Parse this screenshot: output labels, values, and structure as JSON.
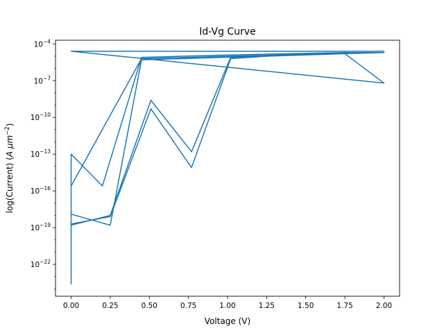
{
  "chart_data": {
    "type": "line",
    "title": "Id-Vg Curve",
    "xlabel": "Voltage (V)",
    "ylabel_parts": {
      "prefix": "log(Current) (",
      "unit_a": "A",
      "unit_mu": "μm",
      "exponent": "−2",
      "suffix": ")"
    },
    "xlim": [
      -0.1,
      2.1
    ],
    "ylim_log10": [
      -24.6,
      -3.7
    ],
    "log_scale_y": true,
    "grid": false,
    "line_color": "#1f77b4",
    "x_ticks": [
      {
        "value": 0.0,
        "label": "0.00"
      },
      {
        "value": 0.25,
        "label": "0.25"
      },
      {
        "value": 0.5,
        "label": "0.50"
      },
      {
        "value": 0.75,
        "label": "0.75"
      },
      {
        "value": 1.0,
        "label": "1.00"
      },
      {
        "value": 1.25,
        "label": "1.25"
      },
      {
        "value": 1.5,
        "label": "1.50"
      },
      {
        "value": 1.75,
        "label": "1.75"
      },
      {
        "value": 2.0,
        "label": "2.00"
      }
    ],
    "y_ticks": [
      {
        "exp": -4,
        "label_base": "10",
        "label_exp": "−4"
      },
      {
        "exp": -7,
        "label_base": "10",
        "label_exp": "−7"
      },
      {
        "exp": -10,
        "label_base": "10",
        "label_exp": "−10"
      },
      {
        "exp": -13,
        "label_base": "10",
        "label_exp": "−13"
      },
      {
        "exp": -16,
        "label_base": "10",
        "label_exp": "−16"
      },
      {
        "exp": -19,
        "label_base": "10",
        "label_exp": "−19"
      },
      {
        "exp": -22,
        "label_base": "10",
        "label_exp": "−22"
      }
    ],
    "points_log10": [
      [
        0.0,
        -4.6
      ],
      [
        2.0,
        -4.6
      ],
      [
        1.75,
        -4.6
      ],
      [
        0.0,
        -4.6
      ],
      [
        2.0,
        -7.2
      ],
      [
        1.75,
        -4.8
      ],
      [
        1.02,
        -5.1
      ],
      [
        0.77,
        -12.8
      ],
      [
        0.51,
        -8.6
      ],
      [
        0.25,
        -18.0
      ],
      [
        0.0,
        -18.8
      ],
      [
        0.0,
        -13.0
      ],
      [
        0.2,
        -15.6
      ],
      [
        0.45,
        -5.1
      ],
      [
        1.0,
        -4.9
      ],
      [
        1.75,
        -4.7
      ],
      [
        2.0,
        -4.7
      ],
      [
        1.5,
        -4.8
      ],
      [
        1.02,
        -5.2
      ],
      [
        0.77,
        -14.1
      ],
      [
        0.51,
        -9.3
      ],
      [
        0.25,
        -18.1
      ],
      [
        0.0,
        -18.7
      ],
      [
        0.0,
        -23.6
      ],
      [
        0.0,
        -13.0
      ],
      [
        0.0,
        -15.6
      ],
      [
        0.45,
        -5.2
      ],
      [
        1.0,
        -5.0
      ],
      [
        2.0,
        -4.7
      ],
      [
        0.45,
        -5.3
      ],
      [
        0.25,
        -18.8
      ],
      [
        0.0,
        -17.9
      ],
      [
        0.0,
        -23.6
      ]
    ]
  }
}
